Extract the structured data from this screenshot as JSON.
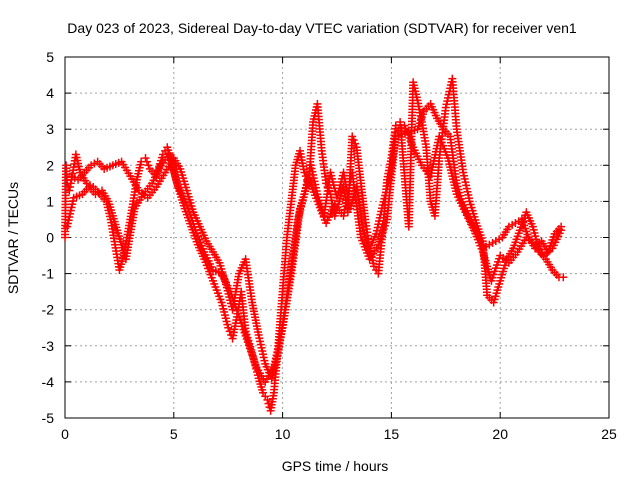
{
  "chart_data": {
    "type": "scatter",
    "title": "Day 023 of 2023, Sidereal Day-to-day VTEC variation (SDTVAR) for receiver ven1",
    "xlabel": "GPS time / hours",
    "ylabel": "SDTVAR / TECUs",
    "xlim": [
      0,
      25
    ],
    "ylim": [
      -5,
      5
    ],
    "xticks": [
      0,
      5,
      10,
      15,
      20,
      25
    ],
    "yticks": [
      -5,
      -4,
      -3,
      -2,
      -1,
      0,
      1,
      2,
      3,
      4,
      5
    ],
    "grid": true,
    "marker": "+",
    "color": "#ff0000",
    "series": [
      {
        "x": [
          0.0,
          0.05,
          0.1,
          0.2,
          0.3,
          0.5,
          0.7,
          1.0,
          1.3,
          1.6,
          1.9,
          2.1,
          2.3,
          2.5,
          2.7,
          3.0,
          3.3,
          3.5,
          3.7,
          3.9,
          4.2,
          4.5,
          4.7,
          4.9,
          5.1,
          5.3,
          5.5,
          5.8,
          6.1,
          6.4,
          6.8,
          7.2,
          7.5,
          7.7,
          7.9,
          8.1,
          8.3,
          8.6,
          8.9,
          9.1,
          9.3,
          9.45,
          9.6,
          9.8,
          10.0,
          10.2,
          10.4,
          10.6,
          10.8,
          11.0,
          11.2,
          11.4,
          11.6,
          11.8,
          12.0,
          12.2,
          12.4,
          12.6,
          12.8,
          13.0,
          13.2,
          13.4,
          13.6,
          13.8,
          14.0,
          14.2,
          14.4,
          14.6,
          14.8,
          15.0,
          15.2,
          15.4,
          15.8,
          16.0,
          16.2,
          16.4,
          16.6,
          16.8,
          17.0,
          17.2,
          17.5,
          17.8,
          18.0,
          18.3,
          18.6,
          18.9,
          19.2,
          19.4,
          19.7,
          20.0,
          20.3,
          20.6,
          20.9,
          21.2,
          21.5,
          21.8,
          22.1,
          22.4,
          22.7,
          22.9
        ],
        "y": [
          0.0,
          2.0,
          1.5,
          1.3,
          1.6,
          2.3,
          1.8,
          1.5,
          1.4,
          1.2,
          1.0,
          0.5,
          -0.2,
          -0.9,
          -0.5,
          0.5,
          1.6,
          2.1,
          2.2,
          1.9,
          1.7,
          2.3,
          2.5,
          2.1,
          1.6,
          1.2,
          0.8,
          0.3,
          -0.2,
          -0.6,
          -1.2,
          -1.8,
          -2.5,
          -2.8,
          -2.2,
          -1.5,
          -2.6,
          -3.2,
          -3.9,
          -4.3,
          -4.5,
          -4.8,
          -4.3,
          -3.0,
          -1.5,
          0.0,
          1.0,
          2.0,
          2.4,
          1.8,
          1.5,
          3.2,
          3.7,
          2.4,
          1.5,
          1.2,
          0.6,
          1.0,
          1.4,
          0.7,
          2.8,
          2.5,
          1.5,
          0.5,
          -0.3,
          -0.8,
          -1.0,
          0.2,
          1.6,
          2.2,
          3.1,
          3.2,
          0.3,
          4.3,
          3.8,
          3.2,
          2.5,
          1.0,
          0.6,
          2.2,
          3.6,
          4.4,
          3.0,
          1.8,
          1.0,
          0.4,
          -0.1,
          -1.6,
          -1.8,
          -1.2,
          -0.6,
          -0.3,
          0.2,
          0.7,
          0.3,
          -0.4,
          -0.6,
          -0.9,
          -1.1,
          -1.1
        ]
      },
      {
        "x": [
          0.3,
          0.6,
          0.9,
          1.2,
          1.5,
          1.8,
          2.2,
          2.6,
          3.0,
          3.4,
          3.8,
          4.2,
          4.6,
          5.0,
          5.3,
          5.6,
          5.9,
          6.2,
          6.5,
          6.8,
          7.1,
          7.4,
          7.7,
          8.0,
          8.3,
          8.6,
          8.9,
          9.2,
          9.5,
          9.8,
          10.1,
          10.4,
          10.7,
          11.0,
          11.3,
          11.6,
          11.9,
          12.2,
          12.5,
          12.8,
          13.1,
          13.4,
          13.7,
          14.0,
          14.3,
          14.6,
          14.9,
          15.2,
          16.2,
          16.5,
          16.8,
          17.1,
          17.4,
          17.7,
          18.0,
          18.3,
          18.6,
          18.9,
          19.2,
          19.5,
          19.8,
          20.1,
          20.4,
          20.7,
          21.0,
          21.3,
          21.6,
          21.9,
          22.2,
          22.5,
          22.8
        ],
        "y": [
          1.7,
          1.6,
          1.8,
          2.0,
          2.1,
          1.9,
          2.0,
          2.1,
          1.7,
          1.3,
          1.1,
          1.4,
          1.8,
          2.2,
          1.9,
          1.3,
          0.7,
          0.3,
          -0.1,
          -0.4,
          -0.7,
          -1.3,
          -2.0,
          -1.0,
          -0.6,
          -1.8,
          -2.7,
          -3.5,
          -3.9,
          -3.2,
          -2.0,
          -0.8,
          0.5,
          1.2,
          2.0,
          1.2,
          0.6,
          1.8,
          1.1,
          1.8,
          0.8,
          1.4,
          0.2,
          -0.3,
          0.1,
          0.9,
          1.6,
          2.8,
          3.0,
          3.5,
          3.7,
          3.3,
          3.0,
          2.8,
          1.5,
          0.9,
          0.5,
          0.1,
          -0.3,
          -0.2,
          -0.1,
          0.0,
          0.3,
          0.4,
          0.5,
          0.0,
          -0.3,
          -0.1,
          -0.4,
          0.1,
          0.3
        ]
      },
      {
        "x": [
          0.1,
          0.4,
          0.8,
          1.1,
          1.4,
          1.7,
          2.0,
          2.4,
          2.8,
          3.2,
          3.6,
          4.0,
          4.4,
          4.8,
          5.2,
          5.6,
          6.0,
          6.4,
          6.8,
          7.2,
          7.6,
          8.0,
          8.4,
          8.8,
          9.2,
          9.6,
          10.0,
          10.4,
          10.8,
          11.2,
          11.6,
          12.0,
          12.4,
          12.8,
          13.2,
          13.6,
          14.0,
          14.4,
          14.8,
          15.2,
          15.6,
          16.0,
          16.4,
          16.8,
          17.2,
          17.6,
          18.0,
          18.4,
          18.8,
          19.2,
          19.6,
          20.0,
          20.4,
          20.8,
          21.2,
          21.6,
          22.0,
          22.4,
          22.8
        ],
        "y": [
          0.3,
          1.1,
          1.2,
          1.4,
          1.2,
          1.3,
          1.0,
          0.2,
          -0.6,
          0.8,
          1.2,
          1.5,
          2.0,
          2.3,
          1.4,
          0.9,
          0.2,
          -0.4,
          -0.9,
          -1.0,
          -1.5,
          -2.2,
          -2.9,
          -3.6,
          -4.0,
          -3.6,
          -2.5,
          -1.0,
          0.8,
          1.6,
          1.0,
          0.4,
          0.9,
          0.6,
          1.8,
          0.0,
          -0.6,
          -0.2,
          0.5,
          2.9,
          3.1,
          2.5,
          2.0,
          1.7,
          2.8,
          2.2,
          1.2,
          0.7,
          0.2,
          -0.4,
          -1.2,
          -0.5,
          -0.7,
          -0.4,
          0.0,
          -0.2,
          -0.5,
          -0.3,
          0.2
        ]
      }
    ]
  }
}
